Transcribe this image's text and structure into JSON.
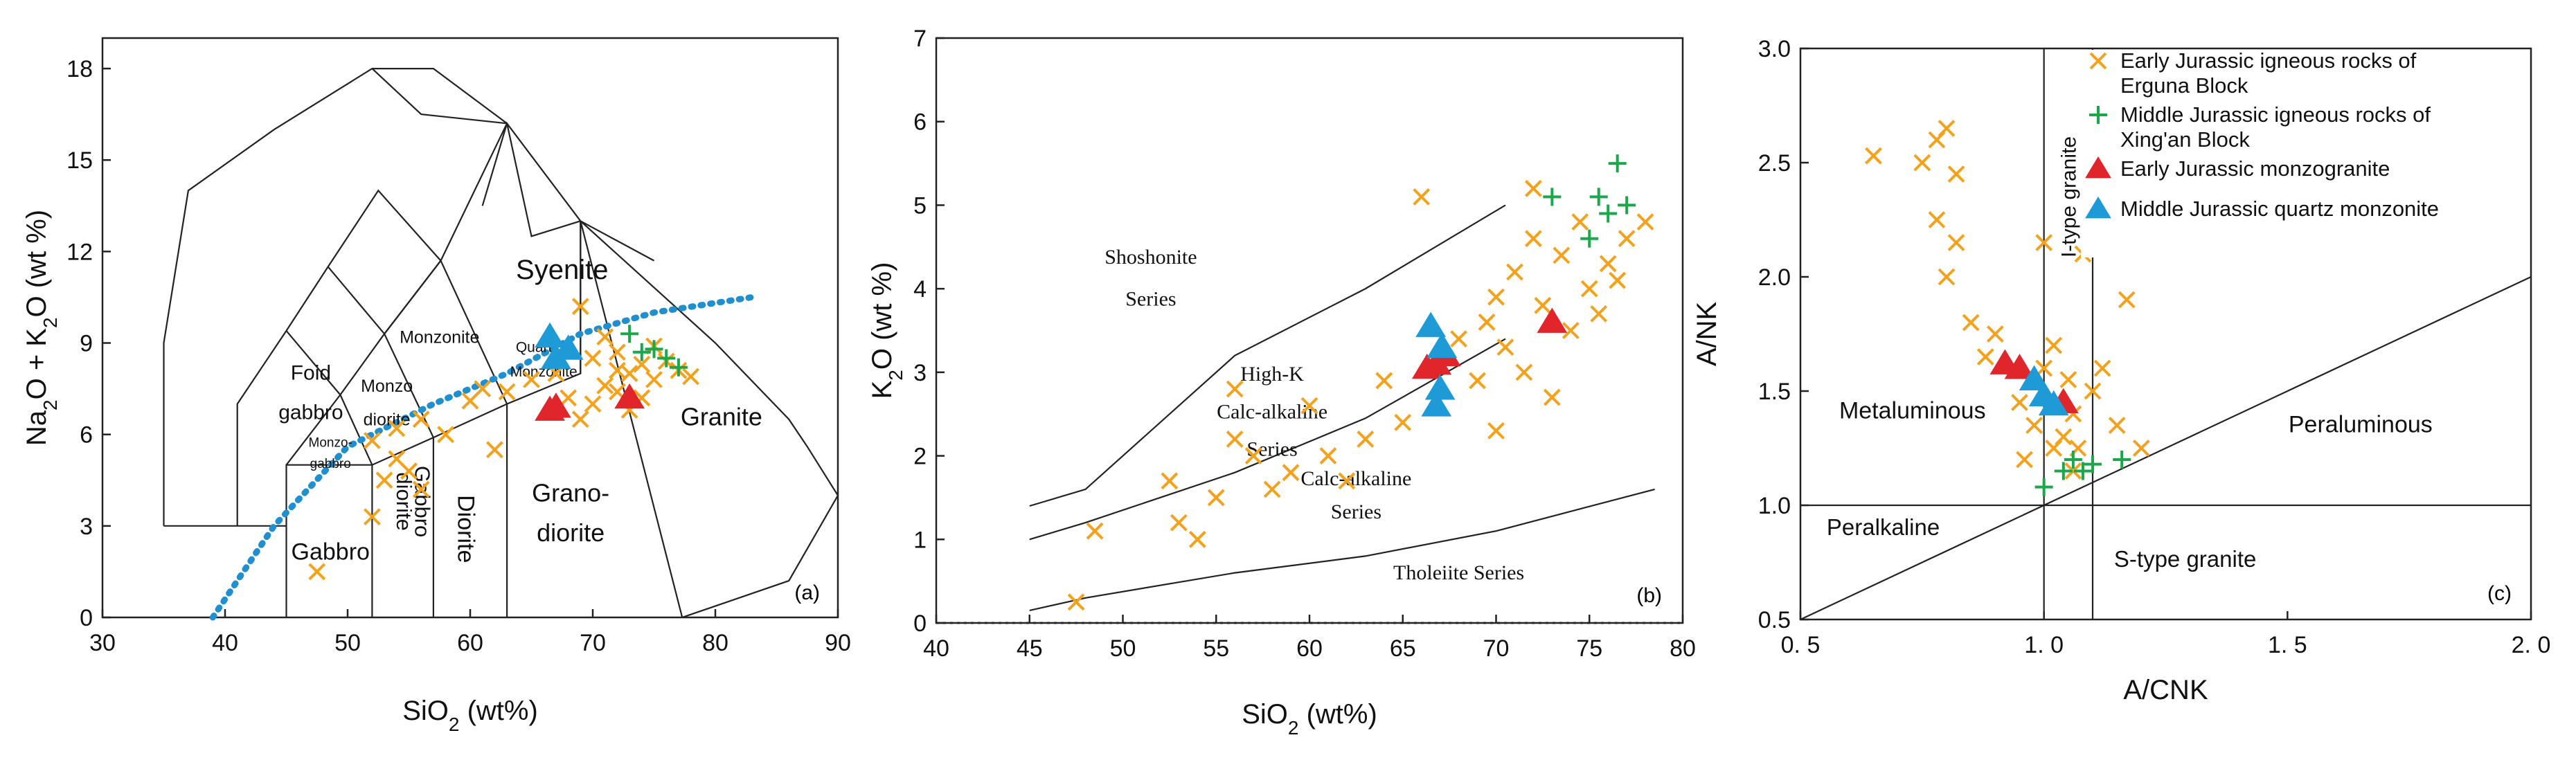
{
  "chart_data": [
    {
      "panel": "(a)",
      "type": "scatter",
      "xlabel": "SiO2 (wt%)",
      "ylabel": "Na2O + K2O (wt %)",
      "xlim": [
        30,
        90
      ],
      "ylim": [
        0,
        19
      ],
      "xticks": [
        "30",
        "40",
        "50",
        "60",
        "70",
        "80",
        "90"
      ],
      "yticks": [
        "0",
        "3",
        "6",
        "9",
        "12",
        "15",
        "18"
      ],
      "field_labels": [
        "Syenite",
        "Monzonite",
        "Quartz",
        "Monzonite",
        "Foid",
        "gabbro",
        "Monzo",
        "diorite",
        "Monzo-",
        "gabbro",
        "Gabbro",
        "Gabbro",
        "diorite",
        "Diorite",
        "Grano-",
        "diorite",
        "Granite"
      ],
      "dotted_curve": [
        [
          39,
          0
        ],
        [
          44,
          3
        ],
        [
          50,
          5.6
        ],
        [
          57,
          7
        ],
        [
          63,
          8
        ],
        [
          69,
          9.3
        ],
        [
          75,
          10
        ],
        [
          83,
          10.5
        ]
      ],
      "series": [
        {
          "name": "Early Jurassic igneous rocks of Erguna Block",
          "marker": "x",
          "points": [
            [
              47.5,
              1.5
            ],
            [
              52,
              3.3
            ],
            [
              53,
              4.5
            ],
            [
              54,
              5.2
            ],
            [
              55,
              4.8
            ],
            [
              56,
              4.2
            ],
            [
              52,
              5.8
            ],
            [
              54,
              6.2
            ],
            [
              56,
              6.5
            ],
            [
              58,
              6.0
            ],
            [
              60,
              7.1
            ],
            [
              62,
              5.5
            ],
            [
              61,
              7.5
            ],
            [
              63,
              7.4
            ],
            [
              65,
              7.8
            ],
            [
              67,
              8.0
            ],
            [
              68,
              7.2
            ],
            [
              69,
              10.2
            ],
            [
              70,
              8.5
            ],
            [
              71,
              9.2
            ],
            [
              72,
              8.7
            ],
            [
              73,
              8.0
            ],
            [
              74,
              8.3
            ],
            [
              75,
              7.8
            ],
            [
              76,
              8.4
            ],
            [
              77,
              8.1
            ],
            [
              78,
              7.9
            ],
            [
              71,
              7.6
            ],
            [
              72,
              7.4
            ],
            [
              73,
              6.8
            ],
            [
              74,
              7.2
            ],
            [
              75,
              8.9
            ],
            [
              70,
              7.0
            ],
            [
              69,
              6.5
            ],
            [
              72,
              8.1
            ]
          ]
        },
        {
          "name": "Middle Jurassic igneous rocks of Xing'an Block",
          "marker": "+",
          "points": [
            [
              73,
              9.3
            ],
            [
              75,
              8.8
            ],
            [
              76,
              8.5
            ],
            [
              77,
              8.2
            ],
            [
              74,
              8.7
            ]
          ]
        },
        {
          "name": "Early Jurassic monzogranite",
          "marker": "triangle",
          "points": [
            [
              66.5,
              6.8
            ],
            [
              67,
              6.9
            ],
            [
              73,
              7.2
            ]
          ]
        },
        {
          "name": "Middle Jurassic quartz monzonite",
          "marker": "triangle",
          "points": [
            [
              66.5,
              9.2
            ],
            [
              67,
              8.5
            ],
            [
              68,
              8.8
            ]
          ]
        }
      ]
    },
    {
      "panel": "(b)",
      "type": "scatter",
      "xlabel": "SiO2 (wt%)",
      "ylabel": "K2O (wt %)",
      "xlim": [
        40,
        80
      ],
      "ylim": [
        0,
        7
      ],
      "xticks": [
        "40",
        "45",
        "50",
        "55",
        "60",
        "65",
        "70",
        "75",
        "80"
      ],
      "yticks": [
        "0",
        "1",
        "2",
        "3",
        "4",
        "5",
        "6",
        "7"
      ],
      "field_labels": [
        "Shoshonite",
        "Series",
        "High-K",
        "Calc-alkaline",
        "Series",
        "Calc-alkaline",
        "Series",
        "Tholeiite Series"
      ],
      "series": [
        {
          "name": "Early Jurassic igneous rocks of Erguna Block",
          "marker": "x",
          "points": [
            [
              47.5,
              0.25
            ],
            [
              48.5,
              1.1
            ],
            [
              52.5,
              1.7
            ],
            [
              53,
              1.2
            ],
            [
              54,
              1.0
            ],
            [
              55,
              1.5
            ],
            [
              56,
              2.2
            ],
            [
              56,
              2.8
            ],
            [
              57,
              2.0
            ],
            [
              58,
              1.6
            ],
            [
              59,
              1.8
            ],
            [
              60,
              2.6
            ],
            [
              61,
              2.0
            ],
            [
              62,
              1.7
            ],
            [
              63,
              2.2
            ],
            [
              64,
              2.9
            ],
            [
              65,
              2.4
            ],
            [
              66,
              5.1
            ],
            [
              67,
              3.1
            ],
            [
              68,
              3.4
            ],
            [
              69,
              2.9
            ],
            [
              69.5,
              3.6
            ],
            [
              70,
              2.3
            ],
            [
              70.5,
              3.3
            ],
            [
              71,
              4.2
            ],
            [
              71.5,
              3.0
            ],
            [
              72,
              4.6
            ],
            [
              72.5,
              3.8
            ],
            [
              73,
              2.7
            ],
            [
              73.5,
              4.4
            ],
            [
              74,
              3.5
            ],
            [
              74.5,
              4.8
            ],
            [
              75,
              4.0
            ],
            [
              75.5,
              3.7
            ],
            [
              76,
              4.3
            ],
            [
              76.5,
              4.1
            ],
            [
              77,
              4.6
            ],
            [
              78,
              4.8
            ],
            [
              72,
              5.2
            ],
            [
              70,
              3.9
            ]
          ]
        },
        {
          "name": "Middle Jurassic igneous rocks of Xing'an Block",
          "marker": "+",
          "points": [
            [
              73,
              5.1
            ],
            [
              75,
              4.6
            ],
            [
              75.5,
              5.1
            ],
            [
              76,
              4.9
            ],
            [
              76.5,
              5.5
            ],
            [
              77,
              5.0
            ]
          ]
        },
        {
          "name": "Early Jurassic monzogranite",
          "marker": "triangle",
          "points": [
            [
              66.3,
              3.05
            ],
            [
              66.8,
              3.1
            ],
            [
              67.3,
              3.2
            ],
            [
              73,
              3.6
            ]
          ]
        },
        {
          "name": "Middle Jurassic quartz monzonite",
          "marker": "triangle",
          "points": [
            [
              66.5,
              3.55
            ],
            [
              67.1,
              3.3
            ],
            [
              67,
              2.8
            ],
            [
              66.8,
              2.6
            ]
          ]
        }
      ]
    },
    {
      "panel": "(c)",
      "type": "scatter",
      "xlabel": "A/CNK",
      "ylabel": "A/NK",
      "xlim": [
        0.5,
        2.0
      ],
      "ylim": [
        0.5,
        3.0
      ],
      "xticks": [
        "0. 5",
        "1. 0",
        "1. 5",
        "2. 0"
      ],
      "yticks": [
        "0.5",
        "1.0",
        "1.5",
        "2.0",
        "2.5",
        "3.0"
      ],
      "field_labels": [
        "I-type granite",
        "Metaluminous",
        "Peraluminous",
        "Peralkaline",
        "S-type granite"
      ],
      "series": [
        {
          "name": "Early Jurassic igneous rocks of Erguna Block",
          "marker": "x",
          "points": [
            [
              0.65,
              2.53
            ],
            [
              0.75,
              2.5
            ],
            [
              0.78,
              2.6
            ],
            [
              0.8,
              2.65
            ],
            [
              0.82,
              2.45
            ],
            [
              0.78,
              2.25
            ],
            [
              0.82,
              2.15
            ],
            [
              0.8,
              2.0
            ],
            [
              0.85,
              1.8
            ],
            [
              0.88,
              1.65
            ],
            [
              0.9,
              1.75
            ],
            [
              0.95,
              1.45
            ],
            [
              0.96,
              1.2
            ],
            [
              1.0,
              2.15
            ],
            [
              1.02,
              1.7
            ],
            [
              1.03,
              1.45
            ],
            [
              1.04,
              1.3
            ],
            [
              1.05,
              1.55
            ],
            [
              1.06,
              1.4
            ],
            [
              1.07,
              1.25
            ],
            [
              1.08,
              2.1
            ],
            [
              1.1,
              1.5
            ],
            [
              1.12,
              1.6
            ],
            [
              1.15,
              1.35
            ],
            [
              1.17,
              1.9
            ],
            [
              1.2,
              1.25
            ],
            [
              0.98,
              1.35
            ],
            [
              1.0,
              1.6
            ],
            [
              1.02,
              1.25
            ],
            [
              1.06,
              1.15
            ]
          ]
        },
        {
          "name": "Middle Jurassic igneous rocks of Xing'an Block",
          "marker": "+",
          "points": [
            [
              1.0,
              1.08
            ],
            [
              1.04,
              1.15
            ],
            [
              1.06,
              1.2
            ],
            [
              1.08,
              1.15
            ],
            [
              1.1,
              1.18
            ],
            [
              1.16,
              1.2
            ]
          ]
        },
        {
          "name": "Early Jurassic monzogranite",
          "marker": "triangle",
          "points": [
            [
              0.92,
              1.62
            ],
            [
              0.95,
              1.6
            ],
            [
              1.04,
              1.45
            ]
          ]
        },
        {
          "name": "Middle Jurassic quartz monzonite",
          "marker": "triangle",
          "points": [
            [
              0.98,
              1.55
            ],
            [
              1.0,
              1.48
            ],
            [
              1.02,
              1.44
            ]
          ]
        }
      ],
      "legend": {
        "placement": "top-right",
        "entries": [
          {
            "lines": [
              "Early Jurassic igneous rocks of",
              "Erguna Block"
            ],
            "marker": "x",
            "color": "#f4a21b"
          },
          {
            "lines": [
              "Middle Jurassic igneous rocks of",
              "Xing'an Block"
            ],
            "marker": "+",
            "color": "#1aa84a"
          },
          {
            "lines": [
              "Early Jurassic monzogranite"
            ],
            "marker": "triangle",
            "color": "#e0262a"
          },
          {
            "lines": [
              "Middle Jurassic quartz monzonite"
            ],
            "marker": "triangle",
            "color": "#1e9bd7"
          }
        ]
      }
    }
  ],
  "colors": {
    "cross": "#f4a21b",
    "plus": "#1aa84a",
    "red_triangle": "#e0262a",
    "blue_triangle": "#1e9bd7",
    "dotted_curve": "#1f8fd0"
  }
}
